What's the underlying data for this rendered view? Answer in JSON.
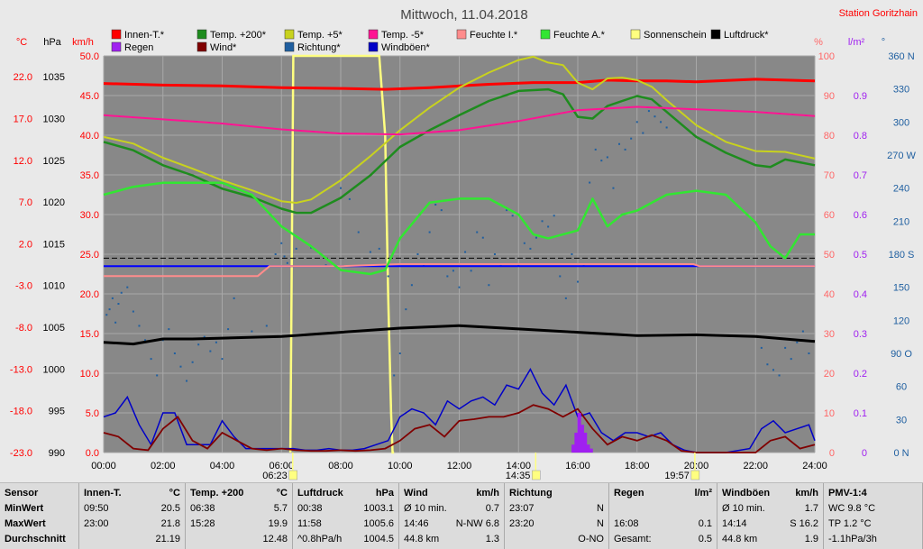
{
  "chart_data": {
    "type": "line",
    "title": "Mittwoch, 11.04.2018",
    "station": "Station Goritzhain",
    "axis_units": {
      "celsius": "°C",
      "hpa": "hPa",
      "kmh": "km/h",
      "percent": "%",
      "rain": "l/m²",
      "deg": "°"
    },
    "axes": {
      "celsius": {
        "ticks": [
          "22.0",
          "17.0",
          "12.0",
          "7.0",
          "2.0",
          "-3.0",
          "-8.0",
          "-13.0",
          "-18.0",
          "-23.0"
        ],
        "range": [
          -23,
          24.5
        ],
        "color": "#ff0000"
      },
      "hpa": {
        "ticks": [
          "1035",
          "1030",
          "1025",
          "1020",
          "1015",
          "1010",
          "1005",
          "1000",
          "995",
          "990"
        ],
        "range": [
          990,
          1037.5
        ],
        "color": "#000000"
      },
      "kmh": {
        "ticks": [
          "50.0",
          "45.0",
          "40.0",
          "35.0",
          "30.0",
          "25.0",
          "20.0",
          "15.0",
          "10.0",
          "5.0",
          "0.0"
        ],
        "range": [
          0,
          50
        ],
        "color": "#ff0000"
      },
      "percent": {
        "ticks": [
          "100",
          "90",
          "80",
          "70",
          "60",
          "50",
          "40",
          "30",
          "20",
          "10",
          "0"
        ],
        "range": [
          0,
          100
        ],
        "color": "#ff6666"
      },
      "rain": {
        "ticks": [
          "0.9",
          "0.8",
          "0.7",
          "0.6",
          "0.5",
          "0.4",
          "0.3",
          "0.2",
          "0.1",
          "0"
        ],
        "range": [
          0,
          1.0
        ],
        "color": "#a020f0"
      },
      "deg": {
        "ticks": [
          "360 N",
          "330",
          "300",
          "270 W",
          "240",
          "210",
          "180 S",
          "150",
          "120",
          "90 O",
          "60",
          "30",
          "0 N"
        ],
        "range": [
          0,
          360
        ],
        "color": "#1f5fa0"
      }
    },
    "x_ticks": [
      "00:00",
      "02:00",
      "04:00",
      "06:00",
      "08:00",
      "10:00",
      "12:00",
      "14:00",
      "16:00",
      "18:00",
      "20:00",
      "22:00",
      "24:00"
    ],
    "sun_events": [
      {
        "time": "06:23",
        "hour": 6.38,
        "kind": "sunrise"
      },
      {
        "time": "14:35",
        "hour": 14.58,
        "kind": "noon"
      },
      {
        "time": "19:57",
        "hour": 19.95,
        "kind": "sunset"
      }
    ],
    "legend": [
      {
        "name": "Innen-T.*",
        "color": "#ff0000"
      },
      {
        "name": "Temp. +200*",
        "color": "#1e8c1e"
      },
      {
        "name": "Temp. +5*",
        "color": "#c8d21e"
      },
      {
        "name": "Temp. -5*",
        "color": "#ff1493"
      },
      {
        "name": "Feuchte I.*",
        "color": "#ff8c8c"
      },
      {
        "name": "Feuchte A.*",
        "color": "#32e632"
      },
      {
        "name": "Sonnenschein",
        "color": "#ffff80"
      },
      {
        "name": "Luftdruck*",
        "color": "#000000"
      },
      {
        "name": "Regen",
        "color": "#a020f0"
      },
      {
        "name": "Wind*",
        "color": "#800000"
      },
      {
        "name": "Richtung*",
        "color": "#1f5fa0"
      },
      {
        "name": "Windböen*",
        "color": "#0000c8"
      }
    ],
    "series": [
      {
        "name": "Innen-T.*",
        "axis": "celsius",
        "color": "#ff0000",
        "width": 3,
        "x": [
          0,
          2,
          4,
          6,
          8,
          9.5,
          11,
          13,
          14.5,
          16,
          17,
          18,
          19,
          20,
          22,
          24
        ],
        "y": [
          21.2,
          21.0,
          20.9,
          20.7,
          20.6,
          20.5,
          20.7,
          21.1,
          21.3,
          21.3,
          21.6,
          21.5,
          21.5,
          21.4,
          21.7,
          21.5
        ]
      },
      {
        "name": "Temp. +200",
        "axis": "celsius",
        "color": "#1e8c1e",
        "width": 2.5,
        "x": [
          0,
          1,
          2,
          3,
          4,
          5,
          6,
          6.5,
          7,
          8,
          9,
          10,
          11,
          12,
          13,
          14,
          15,
          15.5,
          16,
          16.5,
          17,
          17.5,
          18,
          18.5,
          19,
          20,
          21,
          22,
          22.5,
          23,
          24
        ],
        "y": [
          14.2,
          13.2,
          11.4,
          10.2,
          8.6,
          7.6,
          6.2,
          5.7,
          5.7,
          7.5,
          10.2,
          13.6,
          15.6,
          17.4,
          19.1,
          20.3,
          20.5,
          19.9,
          17.2,
          17.0,
          18.5,
          19.1,
          19.7,
          19.3,
          17.8,
          14.8,
          12.9,
          11.4,
          11.2,
          12.1,
          11.4
        ]
      },
      {
        "name": "Temp. +5",
        "axis": "celsius",
        "color": "#c8d21e",
        "width": 2,
        "x": [
          0,
          1,
          2,
          3,
          4,
          5,
          6,
          6.5,
          7,
          8,
          9,
          10,
          11,
          12,
          13,
          14,
          14.5,
          15,
          15.5,
          16,
          16.5,
          17,
          17.5,
          18,
          18.5,
          19,
          20,
          21,
          22,
          23,
          24
        ],
        "y": [
          14.8,
          14.0,
          12.3,
          11.0,
          9.6,
          8.4,
          7.1,
          6.9,
          7.3,
          9.6,
          12.5,
          15.6,
          18.3,
          20.7,
          22.5,
          24.0,
          24.4,
          23.7,
          23.4,
          21.3,
          20.5,
          21.8,
          21.9,
          21.6,
          20.8,
          19.2,
          16.2,
          14.2,
          13.1,
          13.0,
          12.2
        ]
      },
      {
        "name": "Temp. -5",
        "axis": "celsius",
        "color": "#ff1493",
        "width": 2,
        "x": [
          0,
          2,
          4,
          6,
          8,
          10,
          12,
          14,
          16,
          18,
          20,
          22,
          24
        ],
        "y": [
          17.4,
          16.9,
          16.4,
          15.7,
          15.2,
          15.1,
          15.6,
          16.7,
          18.0,
          18.4,
          18.1,
          17.8,
          17.3
        ]
      },
      {
        "name": "Feuchte I.*",
        "axis": "percent",
        "color": "#ff8c8c",
        "width": 2,
        "x": [
          0,
          4,
          5.2,
          5.6,
          8,
          10,
          12,
          16,
          19.9,
          20.1,
          24
        ],
        "y": [
          44.5,
          44.5,
          44.5,
          47.0,
          47.0,
          47.5,
          47.5,
          47.5,
          47.5,
          47.0,
          47.0
        ]
      },
      {
        "name": "Feuchte A.*",
        "axis": "percent",
        "color": "#32e632",
        "width": 2.5,
        "x": [
          0,
          1,
          2,
          3,
          4,
          5,
          6,
          7,
          8,
          9,
          9.5,
          10,
          11,
          12,
          13,
          14,
          14.5,
          15,
          16,
          16.5,
          17,
          17.5,
          18,
          19,
          20,
          21,
          22,
          22.5,
          23,
          23.5,
          24
        ],
        "y": [
          65,
          67,
          68,
          68,
          68,
          65,
          57,
          52,
          46,
          45,
          46,
          54,
          63,
          64,
          64,
          60,
          55,
          54,
          56,
          64,
          57,
          60,
          61,
          65,
          66,
          65,
          58,
          52,
          49,
          55,
          55
        ]
      },
      {
        "name": "Luftdruck*",
        "axis": "hpa",
        "color": "#000000",
        "width": 3,
        "x": [
          0,
          1,
          2,
          3,
          4,
          6,
          8,
          10,
          12,
          14,
          15,
          16,
          18,
          20,
          22,
          24
        ],
        "y": [
          1003.2,
          1003.0,
          1003.6,
          1003.6,
          1003.7,
          1003.9,
          1004.4,
          1004.9,
          1005.2,
          1004.8,
          1004.6,
          1004.4,
          1004.0,
          1004.1,
          1003.9,
          1003.3
        ]
      }
    ],
    "horizontal_lines": [
      {
        "axis": "percent",
        "value": 49,
        "color": "#000000",
        "style": "dashed"
      },
      {
        "axis": "percent",
        "value": 47,
        "color": "#0000ff",
        "style": "solid"
      }
    ],
    "wind": {
      "axis": "kmh",
      "color": "#800000",
      "x": [
        0,
        0.5,
        1,
        1.5,
        2,
        2.5,
        3,
        3.5,
        4,
        4.5,
        5,
        5.5,
        6,
        6.5,
        7,
        7.5,
        8,
        8.5,
        9,
        9.5,
        10,
        10.5,
        11,
        11.5,
        12,
        12.5,
        13,
        13.5,
        14,
        14.5,
        15,
        15.5,
        16,
        16.5,
        17,
        17.5,
        18,
        18.5,
        19,
        19.5,
        20,
        21,
        22,
        22.5,
        23,
        23.5,
        24
      ],
      "y": [
        2.5,
        2,
        0.5,
        0.3,
        3,
        4.5,
        1.5,
        0.5,
        2.5,
        1.5,
        0.5,
        0.3,
        0.5,
        0.3,
        0.2,
        0.2,
        0.3,
        0.2,
        0.3,
        0.5,
        1.5,
        3,
        3.5,
        2,
        4,
        4.2,
        4.5,
        4.5,
        5,
        6,
        5.5,
        4.5,
        5.5,
        3,
        1,
        2,
        1.5,
        2.2,
        1.5,
        0.2,
        0,
        0,
        0,
        1.5,
        2,
        0.5,
        1
      ]
    },
    "gusts": {
      "axis": "kmh",
      "color": "#0000c8",
      "x": [
        0,
        0.4,
        0.8,
        1.2,
        1.6,
        2,
        2.4,
        2.8,
        3.2,
        3.6,
        4,
        4.4,
        4.8,
        5.2,
        5.6,
        6,
        6.4,
        6.8,
        7.2,
        7.6,
        8,
        8.4,
        8.8,
        9.2,
        9.6,
        10,
        10.4,
        10.8,
        11.2,
        11.6,
        12,
        12.4,
        12.8,
        13.2,
        13.6,
        14,
        14.4,
        14.8,
        15.2,
        15.6,
        16,
        16.4,
        16.8,
        17.2,
        17.6,
        18,
        18.4,
        18.8,
        19.2,
        19.6,
        20,
        21,
        21.8,
        22.2,
        22.6,
        23,
        23.4,
        23.8,
        24
      ],
      "y": [
        4.5,
        5,
        7,
        3.5,
        1,
        5,
        5,
        1,
        1,
        1,
        4,
        2,
        0.5,
        0.5,
        0.5,
        0.5,
        0.5,
        0.3,
        0.3,
        0.5,
        0.3,
        0.3,
        0.5,
        1,
        1.5,
        4.5,
        5.5,
        5,
        3.5,
        6.5,
        5.5,
        6.5,
        7,
        6,
        8.5,
        8,
        10.5,
        7.5,
        6,
        8.5,
        4.5,
        5,
        2.5,
        1.5,
        2.5,
        2.5,
        2,
        2.5,
        1,
        0.3,
        0,
        0,
        0.5,
        3,
        4,
        2.5,
        3,
        3.5,
        1.5
      ]
    },
    "rain_bars": {
      "axis": "rain",
      "color": "#a020f0",
      "x": [
        15.85,
        15.95,
        16.05,
        16.15,
        16.25,
        16.35,
        16.45
      ],
      "y": [
        0.02,
        0.05,
        0.1,
        0.07,
        0.05,
        0.02,
        0.01
      ]
    },
    "direction_points": {
      "axis": "deg",
      "color": "#1f5fa0",
      "x": [
        0.1,
        0.2,
        0.3,
        0.4,
        0.5,
        0.6,
        0.8,
        1.0,
        1.2,
        1.4,
        1.6,
        1.8,
        2.0,
        2.2,
        2.4,
        2.6,
        2.8,
        3.0,
        3.2,
        3.4,
        3.6,
        3.8,
        4.0,
        4.2,
        4.4,
        5.0,
        5.5,
        5.8,
        6.0,
        6.1,
        6.2,
        6.5,
        7.0,
        7.5,
        8.0,
        8.3,
        8.6,
        9.0,
        9.3,
        9.6,
        9.8,
        10.0,
        10.2,
        10.4,
        10.6,
        10.8,
        11.0,
        11.2,
        11.4,
        11.6,
        11.8,
        12.0,
        12.2,
        12.4,
        12.6,
        12.8,
        13.0,
        13.2,
        13.4,
        13.6,
        13.8,
        14.0,
        14.2,
        14.4,
        14.6,
        14.8,
        15.0,
        15.2,
        15.4,
        15.6,
        15.8,
        16.0,
        16.2,
        16.4,
        16.6,
        16.8,
        17.0,
        17.2,
        17.4,
        17.6,
        17.8,
        18.0,
        18.2,
        18.4,
        18.6,
        18.8,
        19.0,
        22.2,
        22.4,
        22.6,
        22.8,
        23.0,
        23.2,
        23.4,
        23.6,
        23.8
      ],
      "y": [
        125,
        130,
        140,
        118,
        135,
        145,
        150,
        128,
        115,
        102,
        85,
        70,
        102,
        112,
        90,
        78,
        65,
        82,
        98,
        105,
        92,
        100,
        85,
        112,
        140,
        110,
        115,
        180,
        190,
        178,
        172,
        185,
        186,
        170,
        240,
        230,
        200,
        182,
        185,
        160,
        70,
        90,
        130,
        152,
        180,
        170,
        200,
        225,
        220,
        160,
        165,
        150,
        182,
        165,
        200,
        195,
        152,
        180,
        170,
        220,
        215,
        170,
        190,
        185,
        195,
        210,
        205,
        215,
        160,
        140,
        180,
        155,
        170,
        245,
        275,
        265,
        268,
        240,
        280,
        275,
        285,
        300,
        290,
        310,
        305,
        300,
        295,
        95,
        80,
        75,
        70,
        95,
        85,
        100,
        110,
        90
      ]
    },
    "sunshine": {
      "axis": "kmh",
      "color": "#ffff80",
      "x": [
        6.3,
        6.4,
        9.3,
        9.5,
        9.6,
        9.7,
        9.75,
        9.8
      ],
      "y": [
        0,
        50,
        50,
        40,
        20,
        5,
        0,
        0
      ]
    }
  },
  "table": {
    "cols": [
      {
        "sensor": "Sensor",
        "min": "MinWert",
        "max": "MaxWert",
        "avg": "Durchschnitt"
      },
      {
        "head": "Innen-T.",
        "unit": "°C",
        "min_t": "09:50",
        "min_v": "20.5",
        "max_t": "23:00",
        "max_v": "21.8",
        "avg_t": "",
        "avg_v": "21.19"
      },
      {
        "head": "Temp. +200",
        "unit": "°C",
        "min_t": "06:38",
        "min_v": "5.7",
        "max_t": "15:28",
        "max_v": "19.9",
        "avg_t": "",
        "avg_v": "12.48"
      },
      {
        "head": "Luftdruck",
        "unit": "hPa",
        "min_t": "00:38",
        "min_v": "1003.1",
        "max_t": "11:58",
        "max_v": "1005.6",
        "avg_t": "^0.8hPa/h",
        "avg_v": "1004.5"
      },
      {
        "head": "Wind",
        "unit": "km/h",
        "min_t": "Ø 10 min.",
        "min_v": "0.7",
        "max_t": "14:46",
        "max_v": "N-NW 6.8",
        "avg_t": "44.8 km",
        "avg_v": "1.3"
      },
      {
        "head": "Richtung",
        "unit": "",
        "min_t": "23:07",
        "min_v": "N",
        "max_t": "23:20",
        "max_v": "N",
        "avg_t": "",
        "avg_v": "O-NO"
      },
      {
        "head": "Regen",
        "unit": "l/m²",
        "min_t": "",
        "min_v": "",
        "max_t": "16:08",
        "max_v": "0.1",
        "avg_t": "Gesamt:",
        "avg_v": "0.5"
      },
      {
        "head": "Windböen",
        "unit": "km/h",
        "min_t": "Ø 10 min.",
        "min_v": "1.7",
        "max_t": "14:14",
        "max_v": "S 16.2",
        "avg_t": "44.8 km",
        "avg_v": "1.9"
      },
      {
        "head": "PMV-1:4",
        "unit": "",
        "min_t": "WC 9.8 °C",
        "min_v": "",
        "max_t": "TP 1.2 °C",
        "max_v": "",
        "avg_t": "-1.1hPa/3h",
        "avg_v": ""
      }
    ]
  }
}
